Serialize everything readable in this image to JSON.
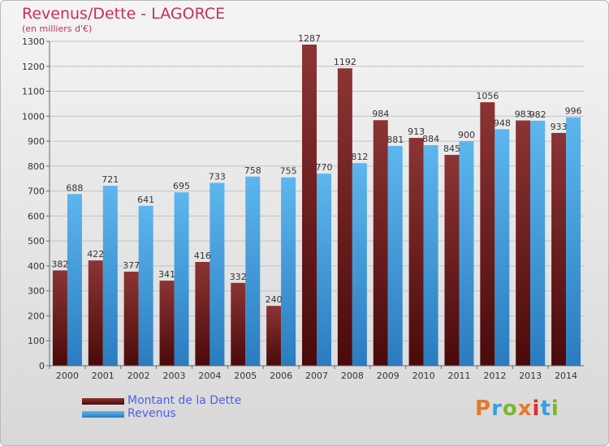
{
  "title": "Revenus/Dette - LAGORCE",
  "subtitle": "(en milliers d'€)",
  "legend": {
    "debt_label": "Montant de la Dette",
    "revenue_label": "Revenus"
  },
  "logo": {
    "text": "Proxiti",
    "colors": [
      "#e8782c",
      "#3aa0dc",
      "#7ab82a",
      "#e8782c",
      "#d83030",
      "#3aa0dc",
      "#7ab82a"
    ]
  },
  "colors": {
    "debt": "#7a2a2a",
    "revenue": "#4aa6e4",
    "title": "#c72f5c",
    "legend_text": "#4e5df0"
  },
  "chart_data": {
    "type": "bar",
    "categories": [
      "2000",
      "2001",
      "2002",
      "2003",
      "2004",
      "2005",
      "2006",
      "2007",
      "2008",
      "2009",
      "2010",
      "2011",
      "2012",
      "2013",
      "2014"
    ],
    "series": [
      {
        "name": "Montant de la Dette",
        "values": [
          382,
          422,
          377,
          341,
          416,
          332,
          240,
          1287,
          1192,
          984,
          913,
          845,
          1056,
          983,
          933
        ]
      },
      {
        "name": "Revenus",
        "values": [
          688,
          721,
          641,
          695,
          733,
          758,
          755,
          770,
          812,
          881,
          884,
          900,
          948,
          982,
          996
        ]
      }
    ],
    "y_ticks": [
      0,
      100,
      200,
      300,
      400,
      500,
      600,
      700,
      800,
      900,
      1000,
      1100,
      1200,
      1300
    ],
    "ylim": [
      0,
      1300
    ],
    "grid": true,
    "legend_position": "bottom-left"
  }
}
